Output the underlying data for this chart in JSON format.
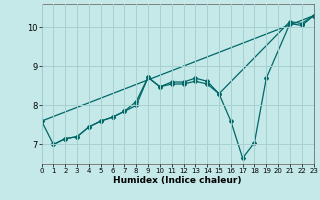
{
  "xlabel": "Humidex (Indice chaleur)",
  "xlim": [
    0,
    23
  ],
  "ylim": [
    6.5,
    10.6
  ],
  "yticks": [
    7,
    8,
    9,
    10
  ],
  "xticks": [
    0,
    1,
    2,
    3,
    4,
    5,
    6,
    7,
    8,
    9,
    10,
    11,
    12,
    13,
    14,
    15,
    16,
    17,
    18,
    19,
    20,
    21,
    22,
    23
  ],
  "background_color": "#c5e8e8",
  "grid_color": "#a8d0d0",
  "line_color": "#006868",
  "line1_x": [
    0,
    1,
    2,
    3,
    4,
    5,
    6,
    7,
    8,
    9,
    10,
    11,
    12,
    13,
    14,
    15,
    21,
    22,
    23
  ],
  "line1_y": [
    7.6,
    7.0,
    7.15,
    7.2,
    7.45,
    7.6,
    7.7,
    7.85,
    8.1,
    8.72,
    8.48,
    8.6,
    8.6,
    8.7,
    8.62,
    8.3,
    10.15,
    10.1,
    10.3
  ],
  "line2_x": [
    1,
    2,
    3,
    4,
    5,
    6,
    7,
    8,
    9,
    10,
    11,
    12,
    13,
    14,
    15,
    16,
    17,
    18,
    19,
    21,
    22,
    23
  ],
  "line2_y": [
    7.0,
    7.15,
    7.2,
    7.45,
    7.6,
    7.7,
    7.85,
    8.0,
    8.72,
    8.48,
    8.55,
    8.55,
    8.62,
    8.55,
    8.3,
    7.6,
    6.65,
    7.05,
    8.7,
    10.1,
    10.05,
    10.3
  ],
  "line3_x": [
    0,
    23
  ],
  "line3_y": [
    7.6,
    10.3
  ]
}
